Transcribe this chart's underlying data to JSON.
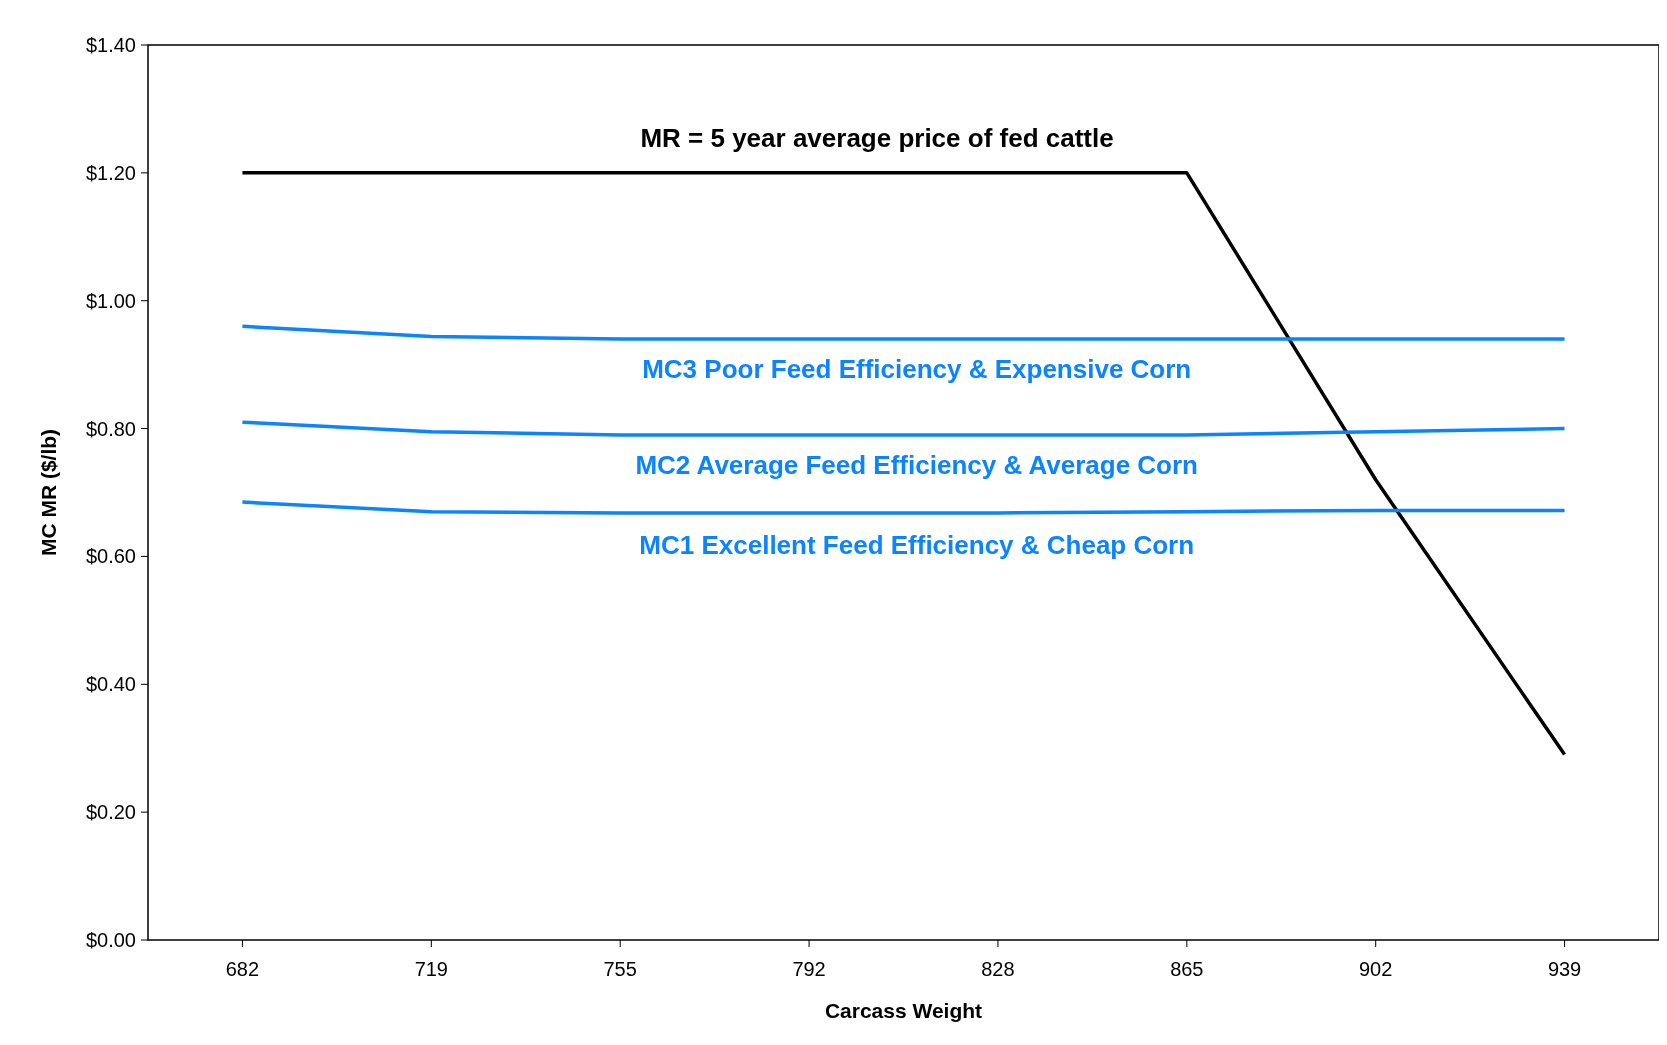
{
  "chart_data": {
    "type": "line",
    "xlabel": "Carcass Weight",
    "ylabel": "MC MR ($/lb)",
    "categories": [
      "682",
      "719",
      "755",
      "792",
      "828",
      "865",
      "902",
      "939"
    ],
    "series": [
      {
        "name": "MR = 5 year average price of fed cattle",
        "color": "#000000",
        "values": [
          1.2,
          1.2,
          1.2,
          1.2,
          1.2,
          1.2,
          0.72,
          0.29
        ]
      },
      {
        "name": "MC3 Poor Feed Efficiency & Expensive Corn",
        "color": "#0a84ff",
        "values": [
          0.96,
          0.944,
          0.94,
          0.94,
          0.94,
          0.94,
          0.94,
          0.94
        ]
      },
      {
        "name": "MC2 Average Feed Efficiency & Average Corn",
        "color": "#0a84ff",
        "values": [
          0.81,
          0.795,
          0.79,
          0.79,
          0.79,
          0.79,
          0.795,
          0.8
        ]
      },
      {
        "name": "MC1 Excellent Feed Efficiency & Cheap Corn",
        "color": "#0a84ff",
        "values": [
          0.685,
          0.67,
          0.668,
          0.668,
          0.668,
          0.67,
          0.672,
          0.672
        ]
      }
    ],
    "ylim": [
      0,
      1.4
    ],
    "yticks": [
      {
        "value": 0,
        "label": "$0.00"
      },
      {
        "value": 0.2,
        "label": "$0.20"
      },
      {
        "value": 0.4,
        "label": "$0.40"
      },
      {
        "value": 0.6,
        "label": "$0.60"
      },
      {
        "value": 0.8,
        "label": "$0.80"
      },
      {
        "value": 1,
        "label": "$1.00"
      },
      {
        "value": 1.2,
        "label": "$1.20"
      },
      {
        "value": 1.4,
        "label": "$1.40"
      }
    ],
    "grid": false,
    "marker": "none",
    "line_style": "solid"
  }
}
